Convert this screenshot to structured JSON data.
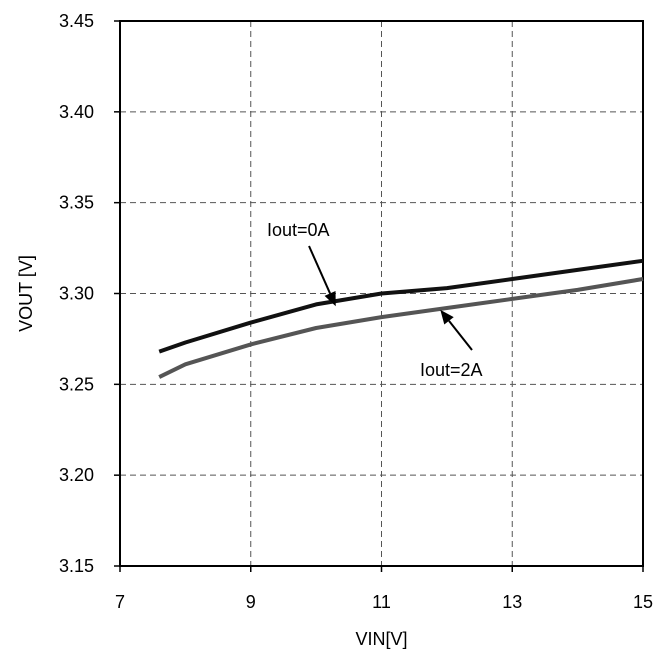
{
  "chart_data": {
    "type": "line",
    "xlabel": "VIN[V]",
    "ylabel": "VOUT [V]",
    "xlim": [
      7,
      15
    ],
    "ylim": [
      3.15,
      3.45
    ],
    "xticks": [
      7,
      9,
      11,
      13,
      15
    ],
    "xtick_labels": [
      "7",
      "9",
      "11",
      "13",
      "15"
    ],
    "yticks": [
      3.15,
      3.2,
      3.25,
      3.3,
      3.35,
      3.4,
      3.45
    ],
    "ytick_labels": [
      "3.15",
      "3.20",
      "3.25",
      "3.30",
      "3.35",
      "3.40",
      "3.45"
    ],
    "grid": true,
    "series": [
      {
        "name": "Iout=0A",
        "color": "#111111",
        "x": [
          7.6,
          8.0,
          9.0,
          10.0,
          11.0,
          12.0,
          13.0,
          14.0,
          15.0
        ],
        "y": [
          3.268,
          3.273,
          3.284,
          3.294,
          3.3,
          3.303,
          3.308,
          3.313,
          3.318
        ]
      },
      {
        "name": "Iout=2A",
        "color": "#555555",
        "x": [
          7.6,
          8.0,
          9.0,
          10.0,
          11.0,
          12.0,
          13.0,
          14.0,
          15.0
        ],
        "y": [
          3.254,
          3.261,
          3.272,
          3.281,
          3.287,
          3.292,
          3.297,
          3.302,
          3.308
        ]
      }
    ],
    "annotations": [
      {
        "text": "Iout=0A",
        "series": "Iout=0A",
        "arrow_to": [
          10.3,
          3.293
        ]
      },
      {
        "text": "Iout=2A",
        "series": "Iout=2A",
        "arrow_to": [
          11.9,
          3.291
        ]
      }
    ]
  }
}
